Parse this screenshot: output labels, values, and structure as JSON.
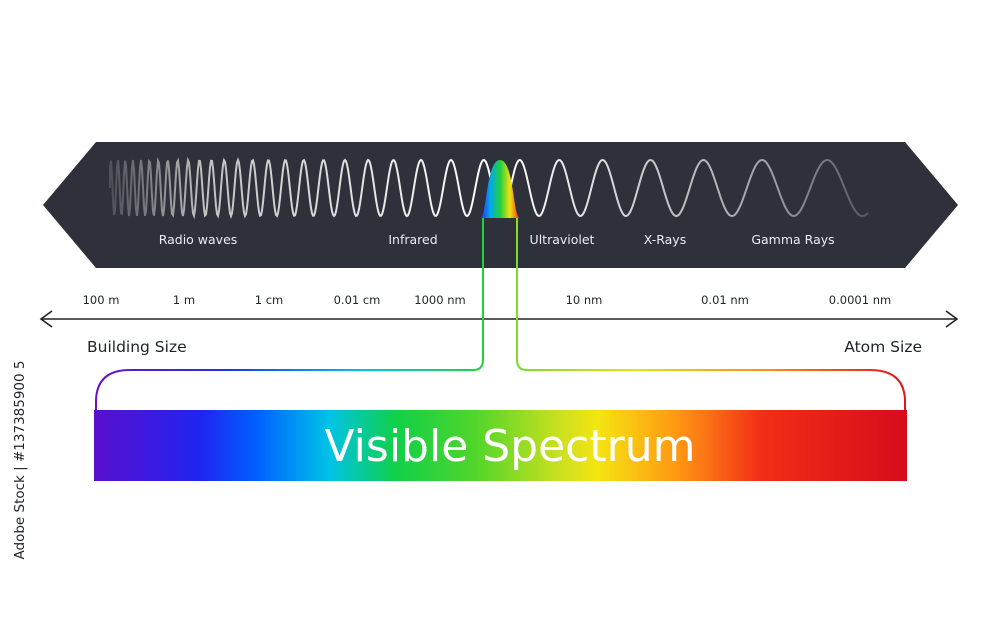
{
  "spectrum_bands": [
    "Radio waves",
    "Infrared",
    "Ultraviolet",
    "X-Rays",
    "Gamma Rays"
  ],
  "wavelength_scale": [
    "100 m",
    "1 m",
    "1 cm",
    "0.01 cm",
    "1000 nm",
    "10 nm",
    "0.01 nm",
    "0.0001 nm"
  ],
  "size_labels": {
    "left": "Building Size",
    "right": "Atom Size"
  },
  "visible_title": "Visible Spectrum",
  "stock_id": "Adobe Stock | #137385900 5",
  "colors": {
    "band_background": "#2e3139",
    "wave_line": "#ffffff",
    "axis": "#1f2328",
    "spectrum": [
      "#5a0fcf",
      "#1f2bf2",
      "#0070ff",
      "#00c8e0",
      "#1ed23a",
      "#9fe12a",
      "#f2e611",
      "#ff9a10",
      "#f03016",
      "#d80f1a"
    ]
  }
}
